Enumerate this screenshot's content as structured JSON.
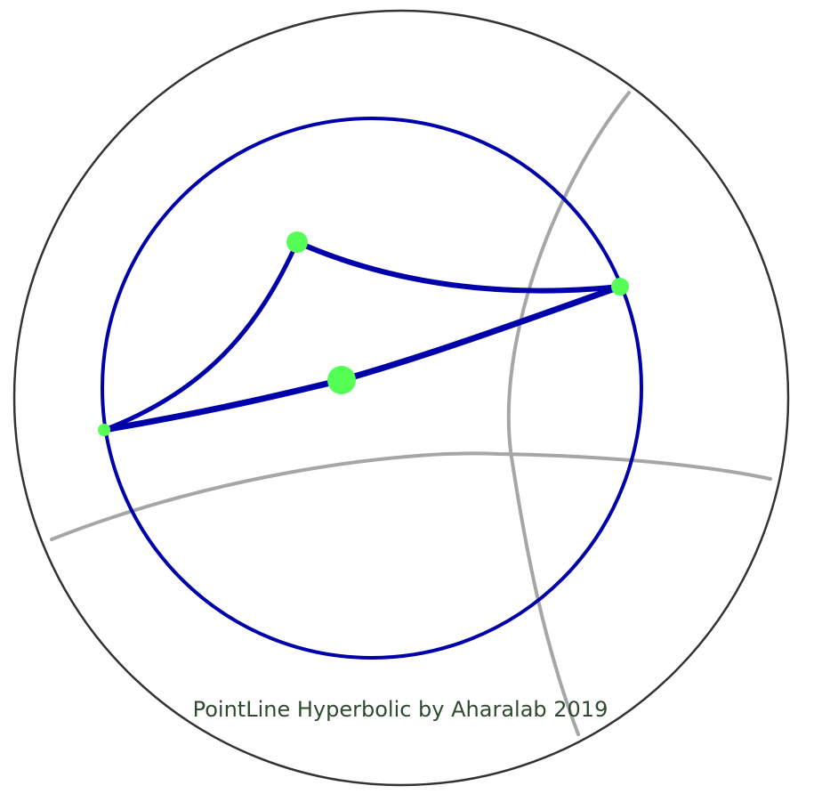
{
  "caption": "PointLine Hyperbolic by Aharalab 2019",
  "colors": {
    "outer_circle": "#333333",
    "inner_circle": "#0000aa",
    "geodesic_lines": "#0000aa",
    "points": "#55ff55",
    "gray_curves": "#a6a6a6",
    "caption": "#2f4a2f"
  }
}
